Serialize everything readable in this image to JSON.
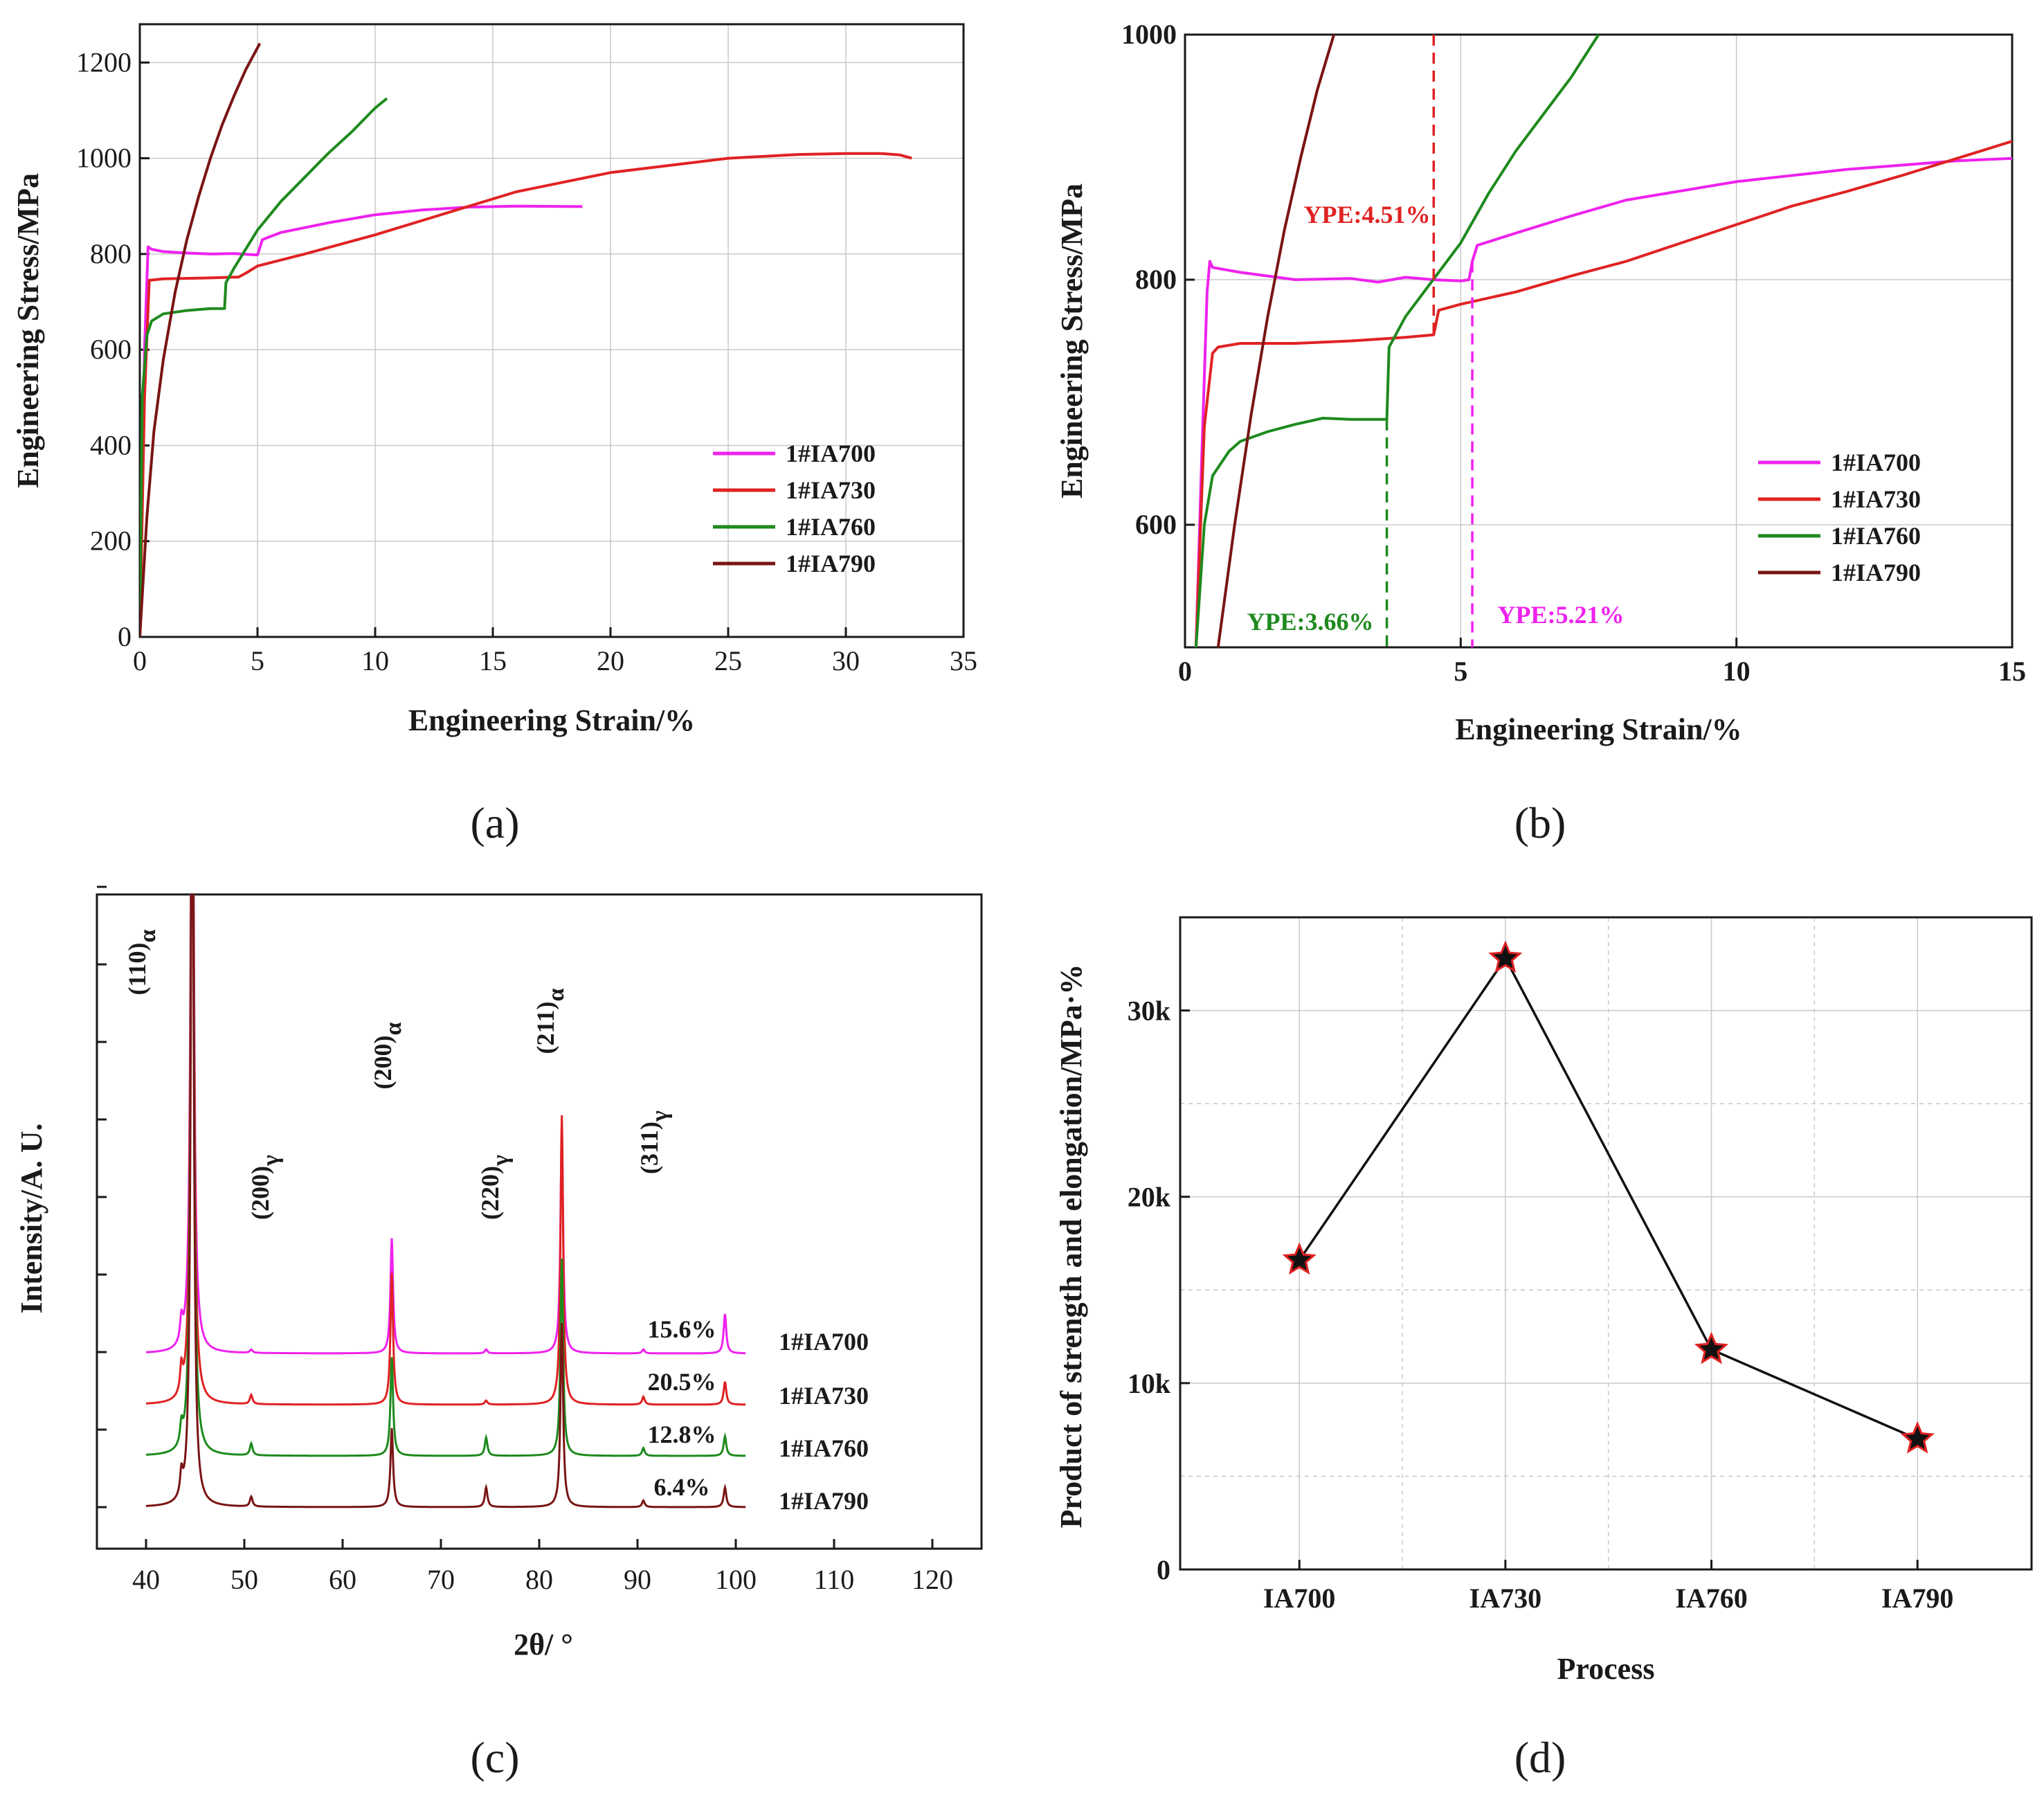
{
  "colors": {
    "IA700": "#ee22ee",
    "IA730": "#e02222",
    "IA760": "#1e8a1e",
    "IA790": "#7a1414",
    "star_fill": "#111111",
    "star_edge": "#e02222",
    "connector": "#111111"
  },
  "panel_labels": [
    "(a)",
    "(b)",
    "(c)",
    "(d)"
  ],
  "chart_data": [
    {
      "panel": "(a)",
      "type": "line",
      "xlabel": "Engineering Strain/%",
      "ylabel": "Engineering Stress/MPa",
      "xlim": [
        0,
        35
      ],
      "ylim": [
        0,
        1280
      ],
      "xticks": [
        0,
        5,
        10,
        15,
        20,
        25,
        30,
        35
      ],
      "yticks": [
        0,
        200,
        400,
        600,
        800,
        1000,
        1200
      ],
      "grid": true,
      "legend": "bottom-right",
      "series": [
        {
          "name": "1#IA700",
          "key": "IA700",
          "x": [
            0,
            0.2,
            0.35,
            0.5,
            1,
            2,
            3,
            4,
            5.0,
            5.21,
            6,
            8,
            10,
            12,
            14,
            16,
            18.8
          ],
          "y": [
            0,
            600,
            815,
            810,
            805,
            802,
            800,
            801,
            798,
            830,
            845,
            865,
            882,
            892,
            898,
            900,
            899
          ]
        },
        {
          "name": "1#IA730",
          "key": "IA730",
          "x": [
            0,
            0.2,
            0.4,
            1,
            2,
            3,
            4.2,
            4.51,
            5,
            7,
            10,
            13,
            16,
            20,
            25,
            28,
            30,
            31.5,
            32.3,
            32.8
          ],
          "y": [
            0,
            500,
            745,
            748,
            749,
            750,
            752,
            760,
            775,
            800,
            840,
            885,
            930,
            970,
            1000,
            1008,
            1010,
            1010,
            1007,
            1000
          ]
        },
        {
          "name": "1#IA760",
          "key": "IA760",
          "x": [
            0,
            0.1,
            0.3,
            0.5,
            1,
            2,
            3,
            3.6,
            3.66,
            4,
            5,
            6,
            7,
            8,
            9,
            10,
            10.5
          ],
          "y": [
            0,
            500,
            630,
            660,
            675,
            682,
            686,
            686,
            740,
            770,
            850,
            910,
            960,
            1010,
            1055,
            1105,
            1125
          ]
        },
        {
          "name": "1#IA790",
          "key": "IA790",
          "x": [
            0,
            0.3,
            0.6,
            1,
            1.5,
            2,
            2.5,
            3,
            3.5,
            4,
            4.5,
            5.1
          ],
          "y": [
            0,
            250,
            430,
            580,
            720,
            830,
            920,
            1000,
            1070,
            1130,
            1185,
            1240
          ]
        }
      ]
    },
    {
      "panel": "(b)",
      "type": "line",
      "xlabel": "Engineering Strain/%",
      "ylabel": "Engineering Stress/MPa",
      "xlim": [
        0,
        15
      ],
      "ylim": [
        500,
        1000
      ],
      "xticks": [
        0,
        5,
        10,
        15
      ],
      "yticks": [
        600,
        800,
        1000
      ],
      "grid": true,
      "legend": "right",
      "series": [
        {
          "name": "1#IA700",
          "key": "IA700",
          "x": [
            0.2,
            0.3,
            0.4,
            0.45,
            0.5,
            1,
            2,
            3,
            3.5,
            4,
            4.5,
            5.0,
            5.15,
            5.21,
            5.3,
            6,
            7,
            8,
            10,
            12,
            14,
            15
          ],
          "y": [
            500,
            650,
            790,
            815,
            810,
            806,
            800,
            801,
            798,
            802,
            800,
            799,
            800,
            815,
            828,
            838,
            852,
            865,
            880,
            890,
            897,
            899
          ]
        },
        {
          "name": "1#IA730",
          "key": "IA730",
          "x": [
            0.2,
            0.35,
            0.5,
            0.6,
            1,
            2,
            3,
            4,
            4.51,
            4.6,
            5,
            6,
            7,
            8,
            9,
            10,
            11,
            12,
            13,
            14,
            15
          ],
          "y": [
            500,
            680,
            740,
            745,
            748,
            748,
            750,
            753,
            755,
            775,
            780,
            790,
            803,
            815,
            830,
            845,
            860,
            872,
            885,
            899,
            913
          ]
        },
        {
          "name": "1#IA760",
          "key": "IA760",
          "x": [
            0.2,
            0.35,
            0.5,
            0.8,
            1,
            1.5,
            2,
            2.5,
            3,
            3.5,
            3.66,
            3.7,
            4,
            4.5,
            5,
            5.5,
            6,
            6.5,
            7,
            7.5
          ],
          "y": [
            500,
            600,
            640,
            660,
            668,
            676,
            682,
            687,
            686,
            686,
            686,
            745,
            770,
            800,
            830,
            870,
            905,
            935,
            965,
            1000
          ]
        },
        {
          "name": "1#IA790",
          "key": "IA790",
          "x": [
            0.6,
            0.9,
            1.2,
            1.5,
            1.8,
            2.1,
            2.4,
            2.7
          ],
          "y": [
            500,
            600,
            690,
            770,
            840,
            900,
            955,
            1000
          ]
        }
      ],
      "annotations": [
        {
          "text": "YPE:4.51%",
          "key": "IA730",
          "x": 4.51
        },
        {
          "text": "YPE:3.66%",
          "key": "IA760",
          "x": 3.66
        },
        {
          "text": "YPE:5.21%",
          "key": "IA700",
          "x": 5.21
        }
      ]
    },
    {
      "panel": "(c)",
      "type": "line",
      "xlabel": "2θ/ °",
      "ylabel": "Intensity/A. U.",
      "xlim": [
        35,
        125
      ],
      "xticks": [
        40,
        50,
        60,
        70,
        80,
        90,
        100,
        110,
        120
      ],
      "grid": false,
      "peak_labels": [
        {
          "main": "(110)",
          "sub": "α",
          "two_theta": 44.7
        },
        {
          "main": "(200)",
          "sub": "γ",
          "two_theta": 50.7
        },
        {
          "main": "(200)",
          "sub": "α",
          "two_theta": 65.0
        },
        {
          "main": "(220)",
          "sub": "γ",
          "two_theta": 74.6
        },
        {
          "main": "(211)",
          "sub": "α",
          "two_theta": 82.3
        },
        {
          "main": "(311)",
          "sub": "γ",
          "two_theta": 90.6
        }
      ],
      "series": [
        {
          "name": "1#IA700",
          "key": "IA700",
          "austenite_fraction": "15.6%",
          "offset": 3,
          "peaks": [
            [
              43.6,
              0.35
            ],
            [
              44.7,
              12.0
            ],
            [
              50.7,
              0.05
            ],
            [
              65.0,
              1.75
            ],
            [
              74.6,
              0.06
            ],
            [
              82.3,
              3.4
            ],
            [
              90.6,
              0.06
            ],
            [
              98.9,
              0.6
            ]
          ]
        },
        {
          "name": "1#IA730",
          "key": "IA730",
          "austenite_fraction": "20.5%",
          "offset": 2,
          "peaks": [
            [
              43.6,
              0.4
            ],
            [
              44.7,
              12.0
            ],
            [
              50.7,
              0.14
            ],
            [
              65.0,
              2.0
            ],
            [
              74.6,
              0.06
            ],
            [
              82.3,
              4.4
            ],
            [
              90.6,
              0.12
            ],
            [
              98.9,
              0.35
            ]
          ]
        },
        {
          "name": "1#IA760",
          "key": "IA760",
          "austenite_fraction": "12.8%",
          "offset": 1,
          "peaks": [
            [
              43.6,
              0.3
            ],
            [
              44.7,
              12.0
            ],
            [
              50.7,
              0.18
            ],
            [
              65.0,
              1.5
            ],
            [
              74.6,
              0.28
            ],
            [
              82.3,
              3.0
            ],
            [
              90.6,
              0.12
            ],
            [
              98.9,
              0.3
            ]
          ]
        },
        {
          "name": "1#IA790",
          "key": "IA790",
          "austenite_fraction": "6.4%",
          "offset": 0,
          "peaks": [
            [
              43.6,
              0.35
            ],
            [
              44.7,
              12.0
            ],
            [
              50.7,
              0.15
            ],
            [
              65.0,
              1.2
            ],
            [
              74.6,
              0.3
            ],
            [
              82.3,
              2.8
            ],
            [
              90.6,
              0.1
            ],
            [
              98.9,
              0.3
            ]
          ]
        }
      ]
    },
    {
      "panel": "(d)",
      "type": "line",
      "xlabel": "Process",
      "ylabel": "Product of strength and elongation/MPa·%",
      "categories": [
        "IA700",
        "IA730",
        "IA760",
        "IA790"
      ],
      "ylim": [
        0,
        35000
      ],
      "yticks": [
        0,
        10000,
        20000,
        30000
      ],
      "ytick_labels": [
        "0",
        "10k",
        "20k",
        "30k"
      ],
      "grid": true,
      "series": [
        {
          "values": [
            16600,
            32800,
            11800,
            7000
          ]
        }
      ]
    }
  ]
}
